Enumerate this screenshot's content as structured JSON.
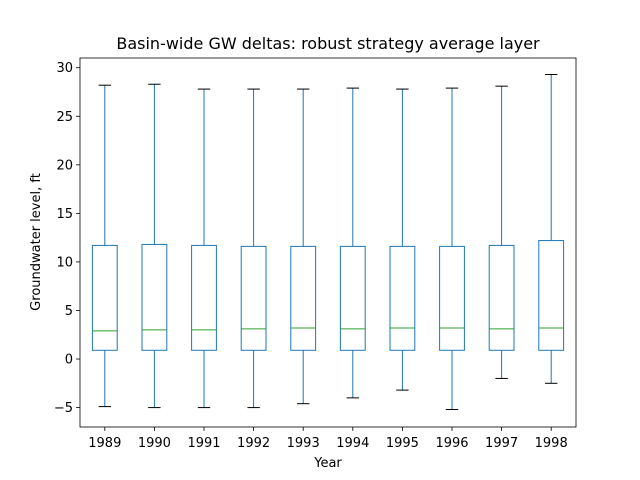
{
  "chart_data": {
    "type": "box",
    "title": "Basin-wide GW deltas: robust strategy average layer",
    "xlabel": "Year",
    "ylabel": "Groundwater level, ft",
    "ylim": [
      -7,
      31
    ],
    "yticks": [
      -5,
      0,
      5,
      10,
      15,
      20,
      25,
      30
    ],
    "grid": false,
    "colors": {
      "box": "#1f77b4",
      "median": "#2ca02c",
      "caps": "#000000"
    },
    "categories": [
      "1989",
      "1990",
      "1991",
      "1992",
      "1993",
      "1994",
      "1995",
      "1996",
      "1997",
      "1998"
    ],
    "boxes": [
      {
        "year": "1989",
        "whisker_low": -4.9,
        "q1": 0.9,
        "median": 2.9,
        "q3": 11.7,
        "whisker_high": 28.2
      },
      {
        "year": "1990",
        "whisker_low": -5.0,
        "q1": 0.9,
        "median": 3.0,
        "q3": 11.8,
        "whisker_high": 28.3
      },
      {
        "year": "1991",
        "whisker_low": -5.0,
        "q1": 0.9,
        "median": 3.0,
        "q3": 11.7,
        "whisker_high": 27.8
      },
      {
        "year": "1992",
        "whisker_low": -5.0,
        "q1": 0.9,
        "median": 3.1,
        "q3": 11.6,
        "whisker_high": 27.8
      },
      {
        "year": "1993",
        "whisker_low": -4.6,
        "q1": 0.9,
        "median": 3.2,
        "q3": 11.6,
        "whisker_high": 27.8
      },
      {
        "year": "1994",
        "whisker_low": -4.0,
        "q1": 0.9,
        "median": 3.1,
        "q3": 11.6,
        "whisker_high": 27.9
      },
      {
        "year": "1995",
        "whisker_low": -3.2,
        "q1": 0.9,
        "median": 3.2,
        "q3": 11.6,
        "whisker_high": 27.8
      },
      {
        "year": "1996",
        "whisker_low": -5.2,
        "q1": 0.9,
        "median": 3.2,
        "q3": 11.6,
        "whisker_high": 27.9
      },
      {
        "year": "1997",
        "whisker_low": -2.0,
        "q1": 0.9,
        "median": 3.1,
        "q3": 11.7,
        "whisker_high": 28.1
      },
      {
        "year": "1998",
        "whisker_low": -2.5,
        "q1": 0.9,
        "median": 3.2,
        "q3": 12.2,
        "whisker_high": 29.3
      }
    ]
  }
}
